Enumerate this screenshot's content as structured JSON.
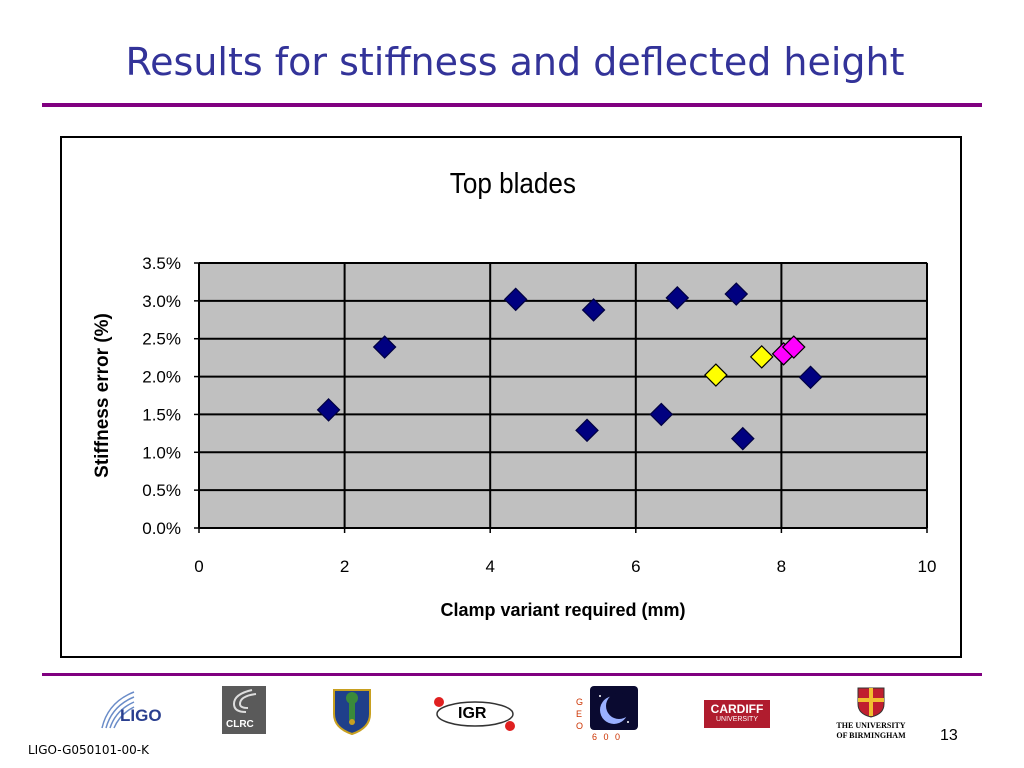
{
  "slide": {
    "title": "Results for stiffness and deflected height",
    "footer_id": "LIGO-G050101-00-K",
    "page_number": "13"
  },
  "colors": {
    "title": "#333399",
    "rule": "#800080",
    "plot_bg": "#c0c0c0",
    "series_navy": "#000080",
    "series_yellow": "#ffff00",
    "series_magenta": "#ff00ff"
  },
  "logos": {
    "ligo": "LIGO",
    "clrc": "CLRC",
    "igr": "IGR",
    "geo600_letters": "G E O",
    "geo600_number": "6 0 0",
    "cardiff_line1": "CARDIFF",
    "cardiff_line2": "UNIVERSITY",
    "birmingham_line1": "THE UNIVERSITY",
    "birmingham_line2": "OF BIRMINGHAM"
  },
  "chart_data": {
    "type": "scatter",
    "title": "Top blades",
    "xlabel": "Clamp variant required (mm)",
    "ylabel": "Stiffness error (%)",
    "xlim": [
      0,
      10
    ],
    "ylim": [
      0,
      3.5
    ],
    "xticks": [
      "0",
      "2",
      "4",
      "6",
      "8",
      "10"
    ],
    "yticks": [
      "0.0%",
      "0.5%",
      "1.0%",
      "1.5%",
      "2.0%",
      "2.5%",
      "3.0%",
      "3.5%"
    ],
    "grid": "horizontal and vertical major gridlines",
    "marker": "diamond",
    "series": [
      {
        "color": "#000080",
        "points": [
          [
            1.78,
            1.56
          ],
          [
            2.55,
            2.39
          ],
          [
            4.35,
            3.02
          ],
          [
            5.33,
            1.29
          ],
          [
            5.42,
            2.88
          ],
          [
            6.35,
            1.5
          ],
          [
            6.57,
            3.04
          ],
          [
            7.38,
            3.09
          ],
          [
            7.47,
            1.18
          ],
          [
            8.4,
            1.99
          ]
        ]
      },
      {
        "color": "#ffff00",
        "points": [
          [
            7.1,
            2.02
          ],
          [
            7.73,
            2.26
          ]
        ]
      },
      {
        "color": "#ff00ff",
        "points": [
          [
            8.03,
            2.3
          ],
          [
            8.17,
            2.39
          ]
        ]
      }
    ]
  }
}
